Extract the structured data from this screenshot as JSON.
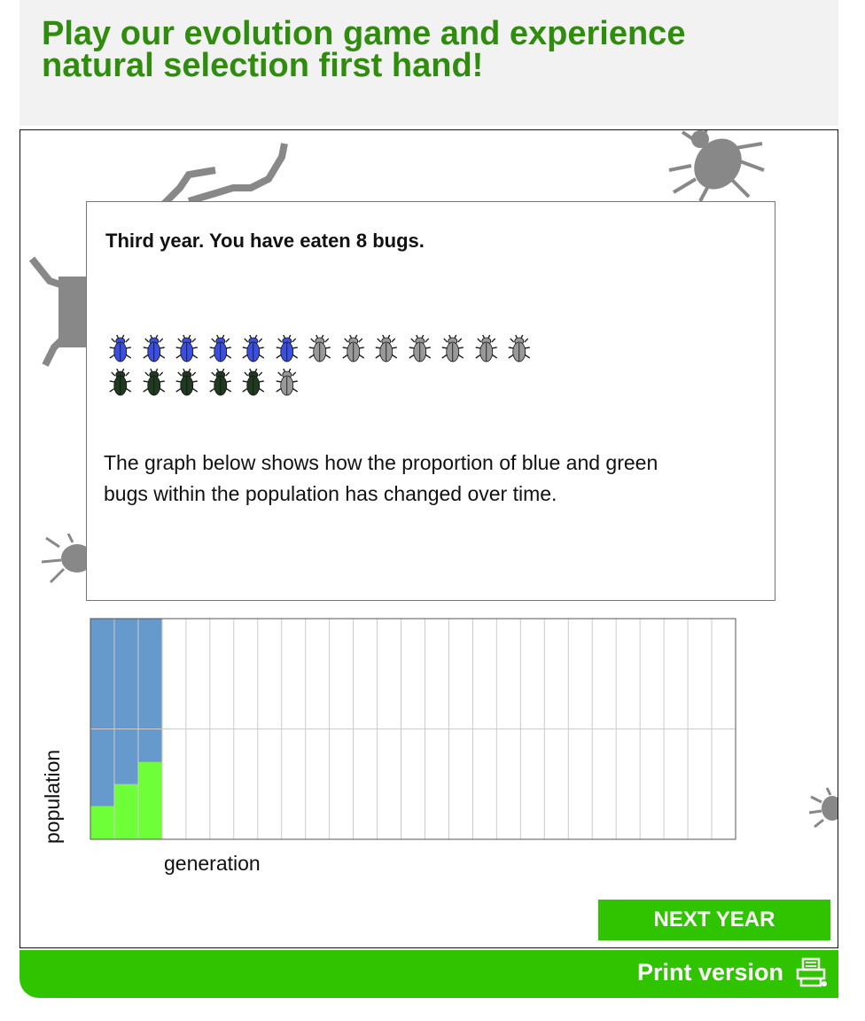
{
  "header": {
    "title": "Play our evolution game and experience natural selection first hand!"
  },
  "popup": {
    "title": "Third year. You have eaten 8 bugs.",
    "description": "The graph below shows how the proportion of blue and green bugs within the population has changed over time.",
    "bug_rows": [
      {
        "alive_color": "blue",
        "alive": 6,
        "eaten": 7
      },
      {
        "alive_color": "green",
        "alive": 5,
        "eaten": 1
      }
    ]
  },
  "chart_data": {
    "type": "area",
    "xlabel": "generation",
    "ylabel": "population",
    "x": [
      1,
      2,
      3
    ],
    "generations_total": 27,
    "ylim": [
      0,
      1
    ],
    "series": [
      {
        "values": [
          0.15,
          0.25,
          0.35
        ],
        "color": "#6fff38"
      },
      {
        "values": [
          0.85,
          0.75,
          0.65
        ],
        "color": "#6699cc"
      }
    ],
    "grid": true
  },
  "buttons": {
    "next_year": "NEXT YEAR"
  },
  "footer": {
    "print_label": "Print version",
    "print_icon": "printer-icon"
  },
  "colors": {
    "brand_green": "#30c400",
    "title_green": "#2f8c0e",
    "blue_bug": "#3a4fe0",
    "green_bug": "#1f3a1f",
    "eaten_bug": "#999999"
  }
}
